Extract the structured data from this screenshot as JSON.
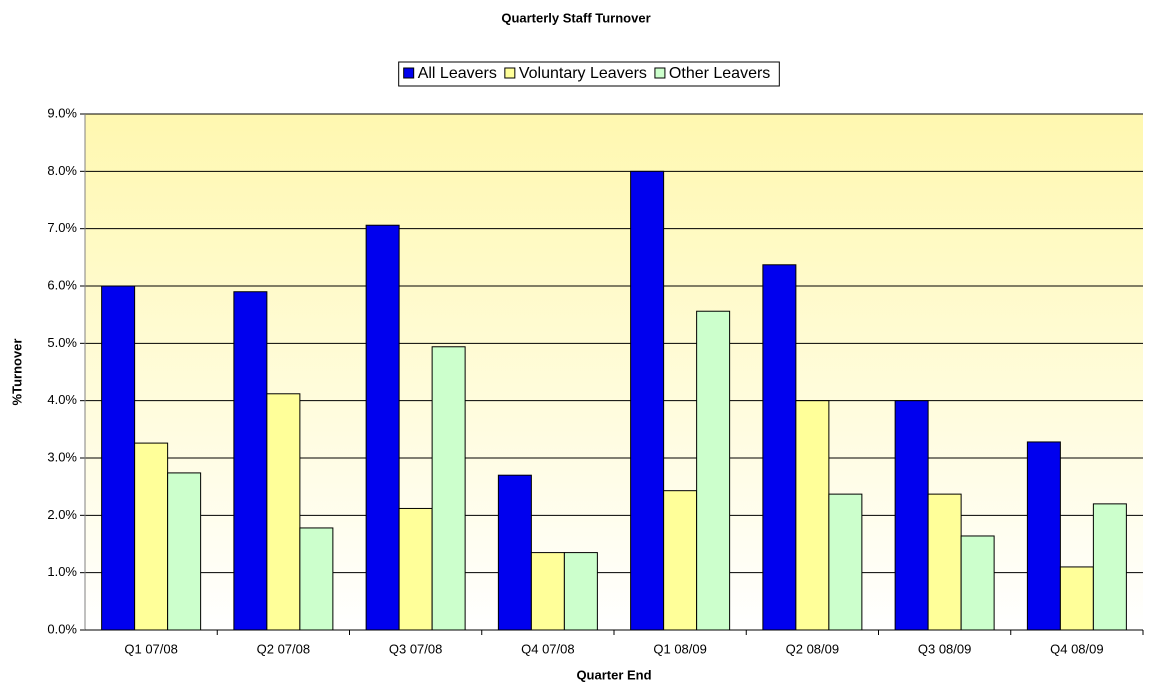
{
  "chart_data": {
    "type": "bar",
    "title": "Quarterly Staff Turnover",
    "x_label": "Quarter End",
    "y_label": "%Turnover",
    "categories": [
      "Q1 07/08",
      "Q2 07/08",
      "Q3 07/08",
      "Q4 07/08",
      "Q1 08/09",
      "Q2 08/09",
      "Q3 08/09",
      "Q4 08/09"
    ],
    "series": [
      {
        "name": "All Leavers",
        "color": "#0000ee",
        "values": [
          6.0,
          5.9,
          7.06,
          2.7,
          8.0,
          6.37,
          4.0,
          3.28
        ]
      },
      {
        "name": "Voluntary Leavers",
        "color": "#ffff99",
        "values": [
          3.26,
          4.12,
          2.12,
          1.35,
          2.43,
          4.0,
          2.37,
          1.1
        ]
      },
      {
        "name": "Other Leavers",
        "color": "#ccffcc",
        "values": [
          2.74,
          1.78,
          4.94,
          1.35,
          5.56,
          2.37,
          1.64,
          2.2
        ]
      }
    ],
    "ylim": [
      0,
      9
    ],
    "yticks": [
      {
        "value": 0,
        "label": "0.0%"
      },
      {
        "value": 1,
        "label": "1.0%"
      },
      {
        "value": 2,
        "label": "2.0%"
      },
      {
        "value": 3,
        "label": "3.0%"
      },
      {
        "value": 4,
        "label": "4.0%"
      },
      {
        "value": 5,
        "label": "5.0%"
      },
      {
        "value": 6,
        "label": "6.0%"
      },
      {
        "value": 7,
        "label": "7.0%"
      },
      {
        "value": 8,
        "label": "8.0%"
      },
      {
        "value": 9,
        "label": "9.0%"
      }
    ],
    "grid": true,
    "legend": "top"
  }
}
